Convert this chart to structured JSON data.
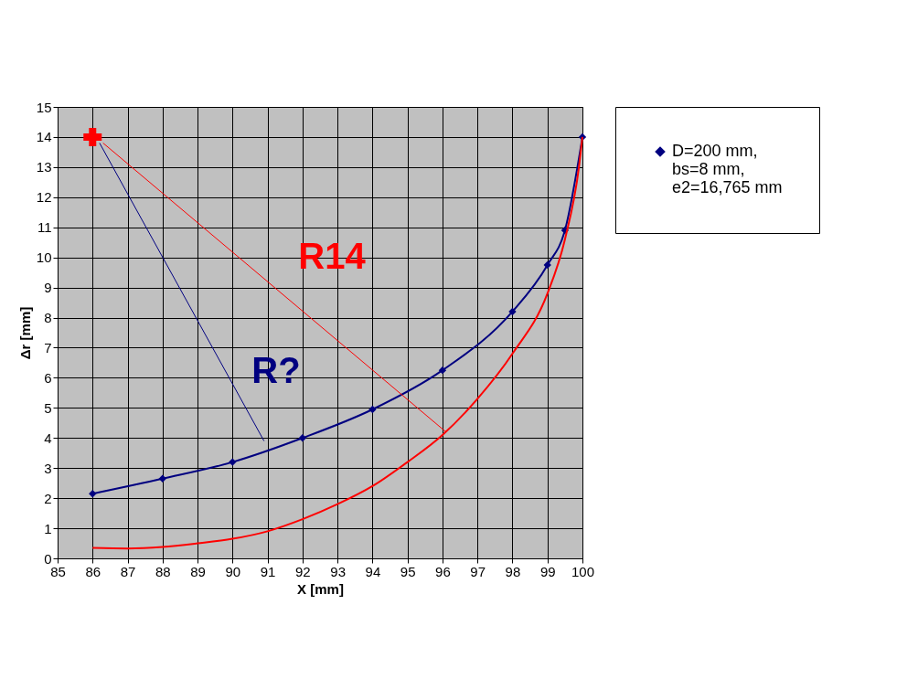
{
  "chart_data": {
    "type": "line",
    "xlabel": "X [mm]",
    "ylabel": "Δr [mm]",
    "xlim": [
      85,
      100
    ],
    "xticks": [
      85,
      86,
      87,
      88,
      89,
      90,
      91,
      92,
      93,
      94,
      95,
      96,
      97,
      98,
      99,
      100
    ],
    "ylim": [
      0,
      15
    ],
    "yticks": [
      0,
      1,
      2,
      3,
      4,
      5,
      6,
      7,
      8,
      9,
      10,
      11,
      12,
      13,
      14,
      15
    ],
    "grid": true,
    "legend": "right",
    "line_style": "solid",
    "series": [
      {
        "name": "D=200 mm, bs=8 mm, e2=16,765 mm",
        "color": "#000080",
        "marker": "diamond",
        "x": [
          86,
          88,
          90,
          92,
          94,
          96,
          98,
          99,
          99.5,
          100
        ],
        "values": [
          2.15,
          2.65,
          3.2,
          4.0,
          4.95,
          6.25,
          8.2,
          9.75,
          10.9,
          14
        ]
      },
      {
        "color": "#ff0000",
        "marker": "none",
        "x": [
          86,
          87,
          88,
          89,
          90,
          91,
          92,
          93,
          94,
          95,
          96,
          97,
          98,
          99,
          99.5,
          99.9,
          100
        ],
        "values": [
          0.35,
          0.33,
          0.38,
          0.5,
          0.65,
          0.9,
          1.3,
          1.8,
          2.4,
          3.2,
          4.1,
          5.3,
          6.8,
          8.8,
          10.6,
          13.0,
          14
        ]
      },
      {
        "color": "#ff0000",
        "type": "scatter",
        "marker": "cross",
        "x": [
          86
        ],
        "values": [
          14
        ]
      },
      {
        "color": "#000080",
        "marker": "none",
        "x": [
          86.2,
          90.9
        ],
        "values": [
          13.8,
          3.9
        ]
      },
      {
        "color": "#ff0000",
        "marker": "none",
        "x": [
          86.3,
          96.1
        ],
        "values": [
          13.8,
          4.2
        ]
      }
    ],
    "annotations": [
      "R14",
      "R?"
    ]
  }
}
